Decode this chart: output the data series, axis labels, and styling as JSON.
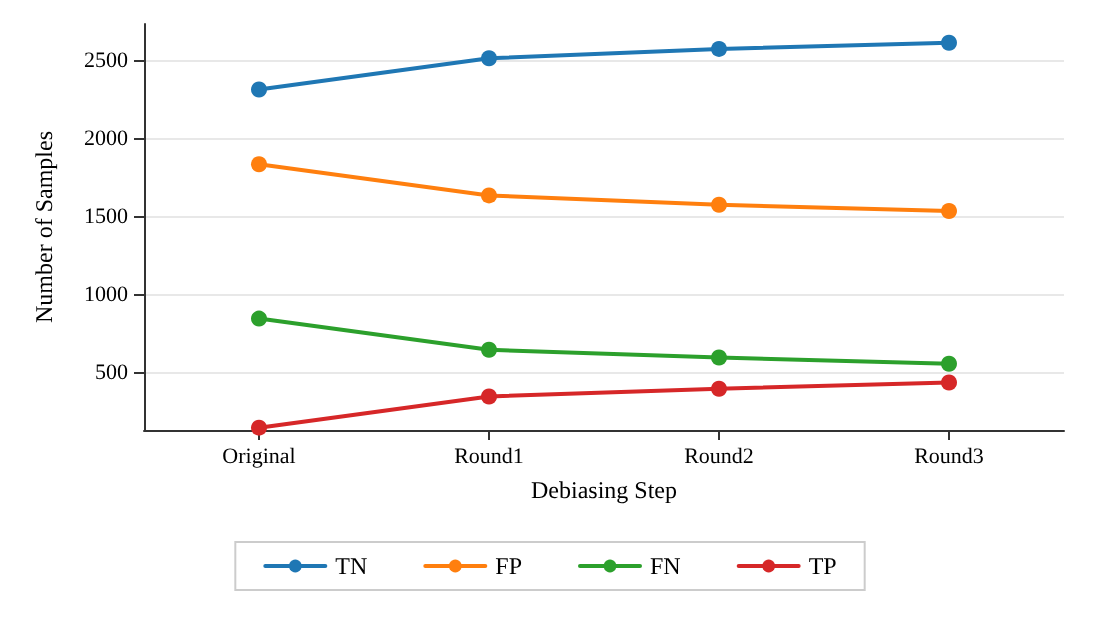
{
  "chart_data": {
    "type": "line",
    "xlabel": "Debiasing Step",
    "ylabel": "Number of Samples",
    "categories": [
      "Original",
      "Round1",
      "Round2",
      "Round3"
    ],
    "series": [
      {
        "name": "TN",
        "color": "#1f77b4",
        "values": [
          2320,
          2520,
          2580,
          2620
        ]
      },
      {
        "name": "FP",
        "color": "#ff7f0e",
        "values": [
          1840,
          1640,
          1580,
          1540
        ]
      },
      {
        "name": "FN",
        "color": "#2ca02c",
        "values": [
          850,
          650,
          600,
          560
        ]
      },
      {
        "name": "TP",
        "color": "#d62728",
        "values": [
          150,
          350,
          400,
          440
        ]
      }
    ],
    "ylim": [
      135,
      2740
    ],
    "yticks": [
      500,
      1000,
      1500,
      2000,
      2500
    ],
    "grid": "y",
    "legend": "bottom",
    "marker": "circle",
    "line_style": "solid"
  }
}
